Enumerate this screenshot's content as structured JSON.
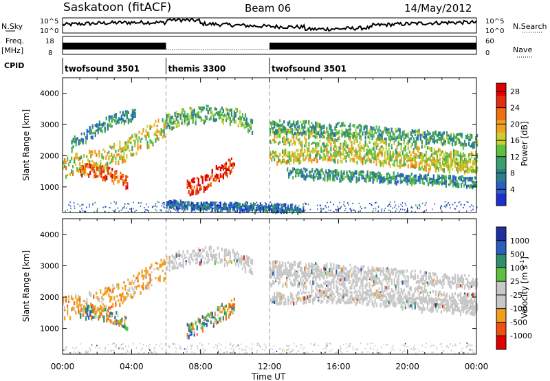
{
  "header": {
    "title": "Saskatoon (fitACF)",
    "beam": "Beam 06",
    "date": "14/May/2012"
  },
  "strip": {
    "nsky_label": "N.Sky",
    "nsky_ticks": [
      "10^5",
      "10^0"
    ],
    "nsearch_label": "N.Search",
    "nsearch_ticks": [
      "10^5",
      "10^0"
    ],
    "freq_label": "Freq.",
    "freq_unit": "[MHz]",
    "freq_ticks": [
      "18",
      "8"
    ],
    "nave_label": "Nave",
    "nave_ticks": [
      "60",
      "0"
    ],
    "cpid_label": "CPID",
    "cpid_segments": [
      {
        "label": "twofsound 3501",
        "start": 0,
        "end": 6
      },
      {
        "label": "themis 3300",
        "start": 6,
        "end": 12
      },
      {
        "label": "twofsound 3501",
        "start": 12,
        "end": 24
      }
    ]
  },
  "colors": {
    "power": [
      "#1f2fcc",
      "#2a5fc8",
      "#2f7f8a",
      "#3a9f6a",
      "#5fbf3f",
      "#c8d030",
      "#f0a020",
      "#f07010",
      "#e03010",
      "#e00000"
    ],
    "velocity": [
      "#1f2fa0",
      "#2a5fc0",
      "#2f8f6a",
      "#5fbf3f",
      "#c8c8c8",
      "#c8c8c8",
      "#f0a020",
      "#f07010",
      "#e03010"
    ]
  },
  "chart_data": [
    {
      "type": "heatmap",
      "panel": "power",
      "xlabel": "Time UT",
      "ylabel": "Slant Range [km]",
      "xlim": [
        0,
        24
      ],
      "ylim": [
        180,
        4500
      ],
      "x_ticks": [
        "00:00",
        "04:00",
        "08:00",
        "12:00",
        "16:00",
        "20:00",
        "00:00"
      ],
      "y_ticks": [
        "1000",
        "2000",
        "3000",
        "4000"
      ],
      "y_tick_values": [
        1000,
        2000,
        3000,
        4000
      ],
      "colorbar_label": "Power [dB]",
      "colorbar_ticks": [
        "4",
        "8",
        "12",
        "16",
        "20",
        "24",
        "28"
      ],
      "colorbar_tick_values": [
        4,
        8,
        12,
        16,
        20,
        24,
        28
      ],
      "colorbar_range": [
        0,
        30
      ],
      "bands": [
        {
          "t": [
            0,
            2,
            3.5,
            5,
            6
          ],
          "r": [
            1700,
            1900,
            2200,
            2700,
            3000
          ],
          "w": 350,
          "level": 0.55
        },
        {
          "t": [
            0.5,
            2.5,
            4.2
          ],
          "r": [
            2400,
            3100,
            3400
          ],
          "w": 200,
          "level": 0.3
        },
        {
          "t": [
            1,
            2.5,
            3.8
          ],
          "r": [
            1600,
            1500,
            1200
          ],
          "w": 200,
          "level": 0.75
        },
        {
          "t": [
            6,
            7,
            8.5,
            10,
            11
          ],
          "r": [
            3100,
            3300,
            3400,
            3300,
            3000
          ],
          "w": 250,
          "level": 0.4
        },
        {
          "t": [
            7.2,
            8,
            9,
            10
          ],
          "r": [
            1000,
            1150,
            1500,
            1800
          ],
          "w": 250,
          "level": 0.9
        },
        {
          "t": [
            6,
            8,
            10,
            12,
            14
          ],
          "r": [
            500,
            450,
            400,
            380,
            350
          ],
          "w": 120,
          "level": 0.2
        },
        {
          "t": [
            12,
            14,
            16,
            18,
            20,
            22,
            24
          ],
          "r": [
            2700,
            2600,
            2500,
            2400,
            2200,
            2000,
            1900
          ],
          "w": 250,
          "level": 0.5
        },
        {
          "t": [
            12,
            15,
            18,
            21,
            24
          ],
          "r": [
            2000,
            2100,
            2000,
            1800,
            1700
          ],
          "w": 200,
          "level": 0.55
        },
        {
          "t": [
            12,
            16,
            20,
            24
          ],
          "r": [
            3000,
            2900,
            2700,
            2500
          ],
          "w": 200,
          "level": 0.35
        },
        {
          "t": [
            13,
            17,
            21,
            24
          ],
          "r": [
            1500,
            1400,
            1300,
            1200
          ],
          "w": 150,
          "level": 0.3
        }
      ]
    },
    {
      "type": "heatmap",
      "panel": "velocity",
      "xlabel": "Time UT",
      "ylabel": "Slant Range [km]",
      "xlim": [
        0,
        24
      ],
      "ylim": [
        180,
        4500
      ],
      "x_ticks": [
        "00:00",
        "04:00",
        "08:00",
        "12:00",
        "16:00",
        "20:00",
        "00:00"
      ],
      "y_ticks": [
        "1000",
        "2000",
        "3000",
        "4000"
      ],
      "y_tick_values": [
        1000,
        2000,
        3000,
        4000
      ],
      "colorbar_label": "Velocity [m s",
      "colorbar_label_sup": "-1",
      "colorbar_label_end": "]",
      "colorbar_ticks": [
        "1000",
        "500",
        "100",
        "25",
        "-25",
        "-100",
        "-500",
        "-1000"
      ],
      "bands": [
        {
          "t": [
            0,
            2,
            3.5,
            5,
            6
          ],
          "r": [
            1700,
            1900,
            2200,
            2700,
            3000
          ],
          "w": 350,
          "cls": "orange"
        },
        {
          "t": [
            1,
            2.5,
            3.8
          ],
          "r": [
            1600,
            1500,
            1200
          ],
          "w": 200,
          "cls": "mix"
        },
        {
          "t": [
            6,
            7,
            8.5,
            10,
            11
          ],
          "r": [
            3100,
            3300,
            3400,
            3300,
            3000
          ],
          "w": 250,
          "cls": "gray"
        },
        {
          "t": [
            7.2,
            8,
            9,
            10
          ],
          "r": [
            1000,
            1150,
            1500,
            1800
          ],
          "w": 250,
          "cls": "mix"
        },
        {
          "t": [
            12,
            14,
            16,
            18,
            20,
            22,
            24
          ],
          "r": [
            2700,
            2600,
            2500,
            2400,
            2200,
            2000,
            1900
          ],
          "w": 250,
          "cls": "gray"
        },
        {
          "t": [
            12,
            15,
            18,
            21,
            24
          ],
          "r": [
            2000,
            2100,
            2000,
            1800,
            1700
          ],
          "w": 200,
          "cls": "gray"
        },
        {
          "t": [
            12,
            16,
            20,
            24
          ],
          "r": [
            3000,
            2900,
            2700,
            2500
          ],
          "w": 200,
          "cls": "gray"
        }
      ]
    }
  ]
}
